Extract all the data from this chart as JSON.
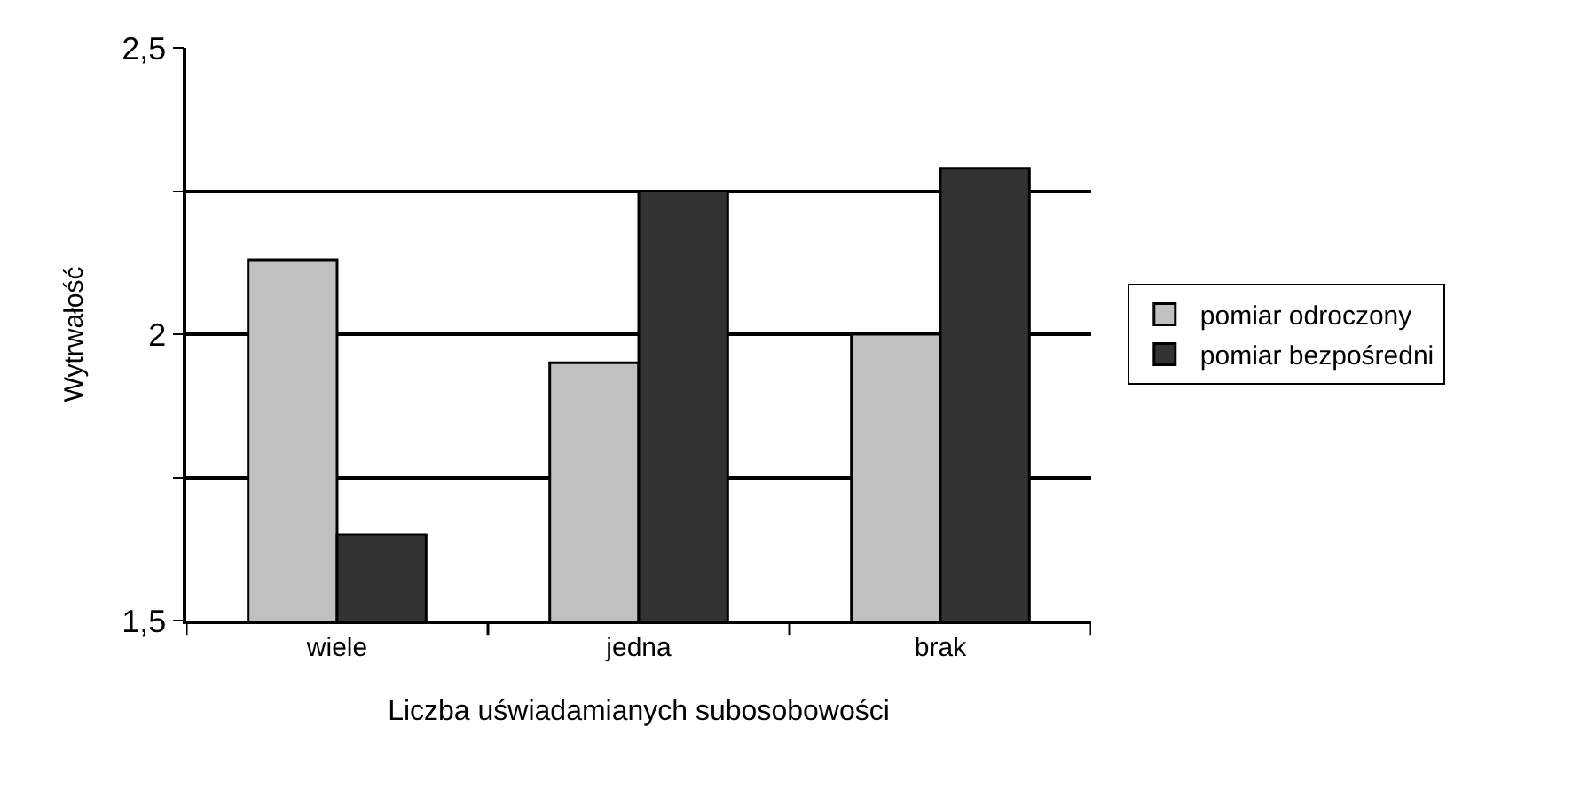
{
  "chart_data": {
    "type": "bar",
    "xlabel": "Liczba uświadamianych subosobowości",
    "ylabel": "Wytrwałość",
    "categories": [
      "wiele",
      "jedna",
      "brak"
    ],
    "series": [
      {
        "name": "pomiar odroczony",
        "color": "#c0c0c0",
        "values": [
          2.13,
          1.95,
          2.0
        ]
      },
      {
        "name": "pomiar bezpośredni",
        "color": "#333333",
        "values": [
          1.65,
          2.25,
          2.29
        ]
      }
    ],
    "ylim": [
      1.5,
      2.5
    ],
    "yticks": [
      {
        "value": 1.5,
        "label": "1,5"
      },
      {
        "value": 1.75,
        "label": null
      },
      {
        "value": 2,
        "label": "2"
      },
      {
        "value": 2.25,
        "label": null
      },
      {
        "value": 2.5,
        "label": "2,5"
      }
    ],
    "grid": "y",
    "legend": "right"
  }
}
